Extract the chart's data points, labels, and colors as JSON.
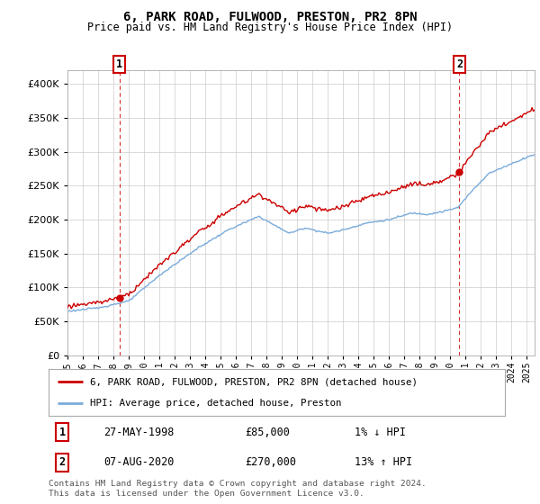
{
  "title": "6, PARK ROAD, FULWOOD, PRESTON, PR2 8PN",
  "subtitle": "Price paid vs. HM Land Registry's House Price Index (HPI)",
  "ylim": [
    0,
    420000
  ],
  "yticks": [
    0,
    50000,
    100000,
    150000,
    200000,
    250000,
    300000,
    350000,
    400000
  ],
  "xlim_start": 1995.0,
  "xlim_end": 2025.5,
  "hpi_color": "#7aabda",
  "price_color": "#cc0000",
  "sale1_date_num": 1998.38,
  "sale1_price": 85000,
  "sale2_date_num": 2020.59,
  "sale2_price": 270000,
  "sale1_date_str": "27-MAY-1998",
  "sale1_amount_str": "£85,000",
  "sale1_hpi_str": "1% ↓ HPI",
  "sale2_date_str": "07-AUG-2020",
  "sale2_amount_str": "£270,000",
  "sale2_hpi_str": "13% ↑ HPI",
  "legend_line1": "6, PARK ROAD, FULWOOD, PRESTON, PR2 8PN (detached house)",
  "legend_line2": "HPI: Average price, detached house, Preston",
  "footnote": "Contains HM Land Registry data © Crown copyright and database right 2024.\nThis data is licensed under the Open Government Licence v3.0.",
  "background_color": "#ffffff",
  "grid_color": "#cccccc",
  "hpi_keypoints_years": [
    1995.0,
    1997.0,
    1999.0,
    2001.0,
    2003.5,
    2005.5,
    2007.5,
    2008.5,
    2009.5,
    2010.5,
    2012.0,
    2013.0,
    2014.5,
    2016.0,
    2017.5,
    2018.5,
    2019.5,
    2020.5,
    2021.5,
    2022.5,
    2023.5,
    2025.3
  ],
  "hpi_keypoints_prices": [
    65000,
    70000,
    80000,
    118000,
    158000,
    185000,
    205000,
    192000,
    180000,
    188000,
    180000,
    185000,
    195000,
    200000,
    210000,
    208000,
    212000,
    218000,
    245000,
    268000,
    278000,
    295000
  ]
}
